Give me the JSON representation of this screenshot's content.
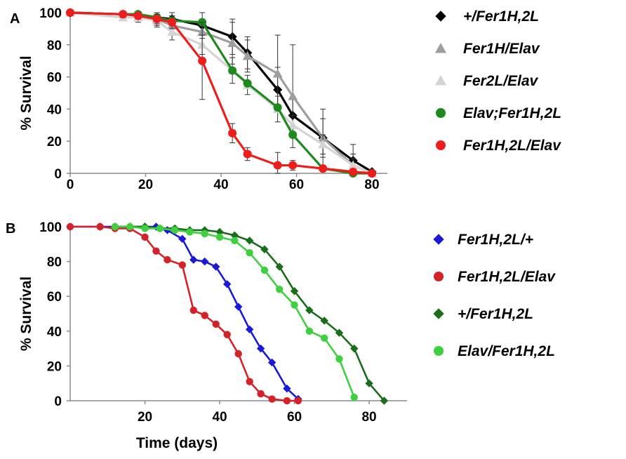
{
  "chart_data": [
    {
      "type": "line",
      "panel_label": "A",
      "title": "",
      "xlabel": "",
      "ylabel": "% Survival",
      "xlim": [
        0,
        80
      ],
      "ylim": [
        0,
        100
      ],
      "x_ticks": [
        0,
        20,
        40,
        60,
        80
      ],
      "y_ticks": [
        0,
        20,
        40,
        60,
        80,
        100
      ],
      "legend_position": "right",
      "series": [
        {
          "name": "+/Fer1H,2L",
          "color": "#000000",
          "marker": "diamond",
          "x": [
            0,
            14,
            18,
            23,
            27,
            35,
            43,
            47,
            55,
            59,
            67,
            75,
            80
          ],
          "y": [
            100,
            99,
            99,
            97,
            96,
            92,
            85,
            75,
            52,
            36,
            22,
            8,
            1
          ],
          "err": [
            0,
            2,
            3,
            4,
            5,
            8,
            11,
            10,
            14,
            10,
            12,
            10,
            0
          ]
        },
        {
          "name": "Fer1H/Elav",
          "color": "#9e9e9e",
          "marker": "triangle",
          "x": [
            0,
            14,
            18,
            23,
            27,
            35,
            43,
            47,
            55,
            59,
            67,
            75,
            80
          ],
          "y": [
            100,
            99,
            99,
            96,
            92,
            88,
            81,
            73,
            62,
            48,
            22,
            5,
            0
          ],
          "err": [
            0,
            2,
            3,
            4,
            6,
            8,
            13,
            10,
            24,
            32,
            18,
            7,
            0
          ]
        },
        {
          "name": "Fer2L/Elav",
          "color": "#d4d4d4",
          "marker": "triangle",
          "x": [
            0,
            14,
            18,
            23,
            27,
            35,
            43,
            47,
            55,
            59,
            67,
            75,
            80
          ],
          "y": [
            100,
            97,
            97,
            95,
            88,
            80,
            64,
            55,
            40,
            30,
            18,
            5,
            0
          ],
          "err": [
            0,
            2,
            3,
            4,
            5,
            6,
            8,
            6,
            8,
            6,
            6,
            4,
            0
          ]
        },
        {
          "name": "Elav;Fer1H,2L",
          "color": "#1e8a1e",
          "marker": "circle",
          "x": [
            0,
            14,
            18,
            23,
            27,
            35,
            43,
            47,
            55,
            59,
            67,
            75,
            80
          ],
          "y": [
            100,
            99,
            99,
            97,
            95,
            94,
            64,
            56,
            41,
            24,
            3,
            0,
            0
          ],
          "err": [
            0,
            0,
            0,
            0,
            0,
            0,
            0,
            0,
            0,
            0,
            0,
            0,
            0
          ]
        },
        {
          "name": "Fer1H,2L/Elav",
          "color": "#ef1c1c",
          "marker": "circle",
          "x": [
            0,
            14,
            18,
            23,
            27,
            35,
            43,
            47,
            55,
            59,
            67,
            75,
            80
          ],
          "y": [
            100,
            99,
            98,
            96,
            94,
            70,
            25,
            12,
            5,
            5,
            3,
            1,
            0
          ],
          "err": [
            0,
            2,
            2,
            3,
            4,
            24,
            6,
            4,
            8,
            3,
            2,
            1,
            0
          ]
        }
      ]
    },
    {
      "type": "line",
      "panel_label": "B",
      "title": "",
      "xlabel": "Time (days)",
      "ylabel": "% Survival",
      "xlim": [
        0,
        88
      ],
      "ylim": [
        0,
        100
      ],
      "x_ticks": [
        20,
        40,
        60,
        80
      ],
      "y_ticks": [
        0,
        20,
        40,
        60,
        80,
        100
      ],
      "legend_position": "right",
      "series": [
        {
          "name": "Fer1H,2L/+",
          "color": "#1a1ad6",
          "marker": "diamond",
          "x": [
            0,
            8,
            12,
            16,
            20,
            23,
            26,
            30,
            33,
            36,
            39,
            42,
            45,
            48,
            51,
            54,
            58,
            61
          ],
          "y": [
            100,
            100,
            100,
            100,
            100,
            100,
            98,
            93,
            81,
            80,
            77,
            67,
            54,
            41,
            30,
            22,
            7,
            1
          ]
        },
        {
          "name": "Fer1H,2L/Elav",
          "color": "#d42328",
          "marker": "circle",
          "x": [
            0,
            8,
            12,
            16,
            20,
            23,
            26,
            30,
            33,
            36,
            39,
            42,
            45,
            48,
            51,
            54,
            58,
            61
          ],
          "y": [
            100,
            100,
            99,
            99,
            94,
            86,
            81,
            78,
            52,
            49,
            44,
            38,
            27,
            11,
            4,
            1,
            0,
            0
          ]
        },
        {
          "name": "+/Fer1H,2L",
          "color": "#1a6d1a",
          "marker": "diamond",
          "x": [
            12,
            16,
            20,
            24,
            28,
            32,
            36,
            40,
            44,
            48,
            52,
            56,
            60,
            64,
            68,
            72,
            76,
            80,
            84
          ],
          "y": [
            100,
            100,
            100,
            99,
            99,
            98,
            98,
            97,
            95,
            92,
            87,
            77,
            63,
            52,
            46,
            39,
            30,
            10,
            0
          ]
        },
        {
          "name": "Elav/Fer1H,2L",
          "color": "#3fd03f",
          "marker": "circle",
          "x": [
            12,
            16,
            20,
            24,
            28,
            32,
            36,
            40,
            44,
            48,
            52,
            56,
            60,
            64,
            68,
            72,
            76
          ],
          "y": [
            100,
            100,
            99,
            99,
            98,
            97,
            96,
            94,
            92,
            85,
            75,
            64,
            55,
            40,
            36,
            24,
            2
          ]
        }
      ]
    }
  ]
}
